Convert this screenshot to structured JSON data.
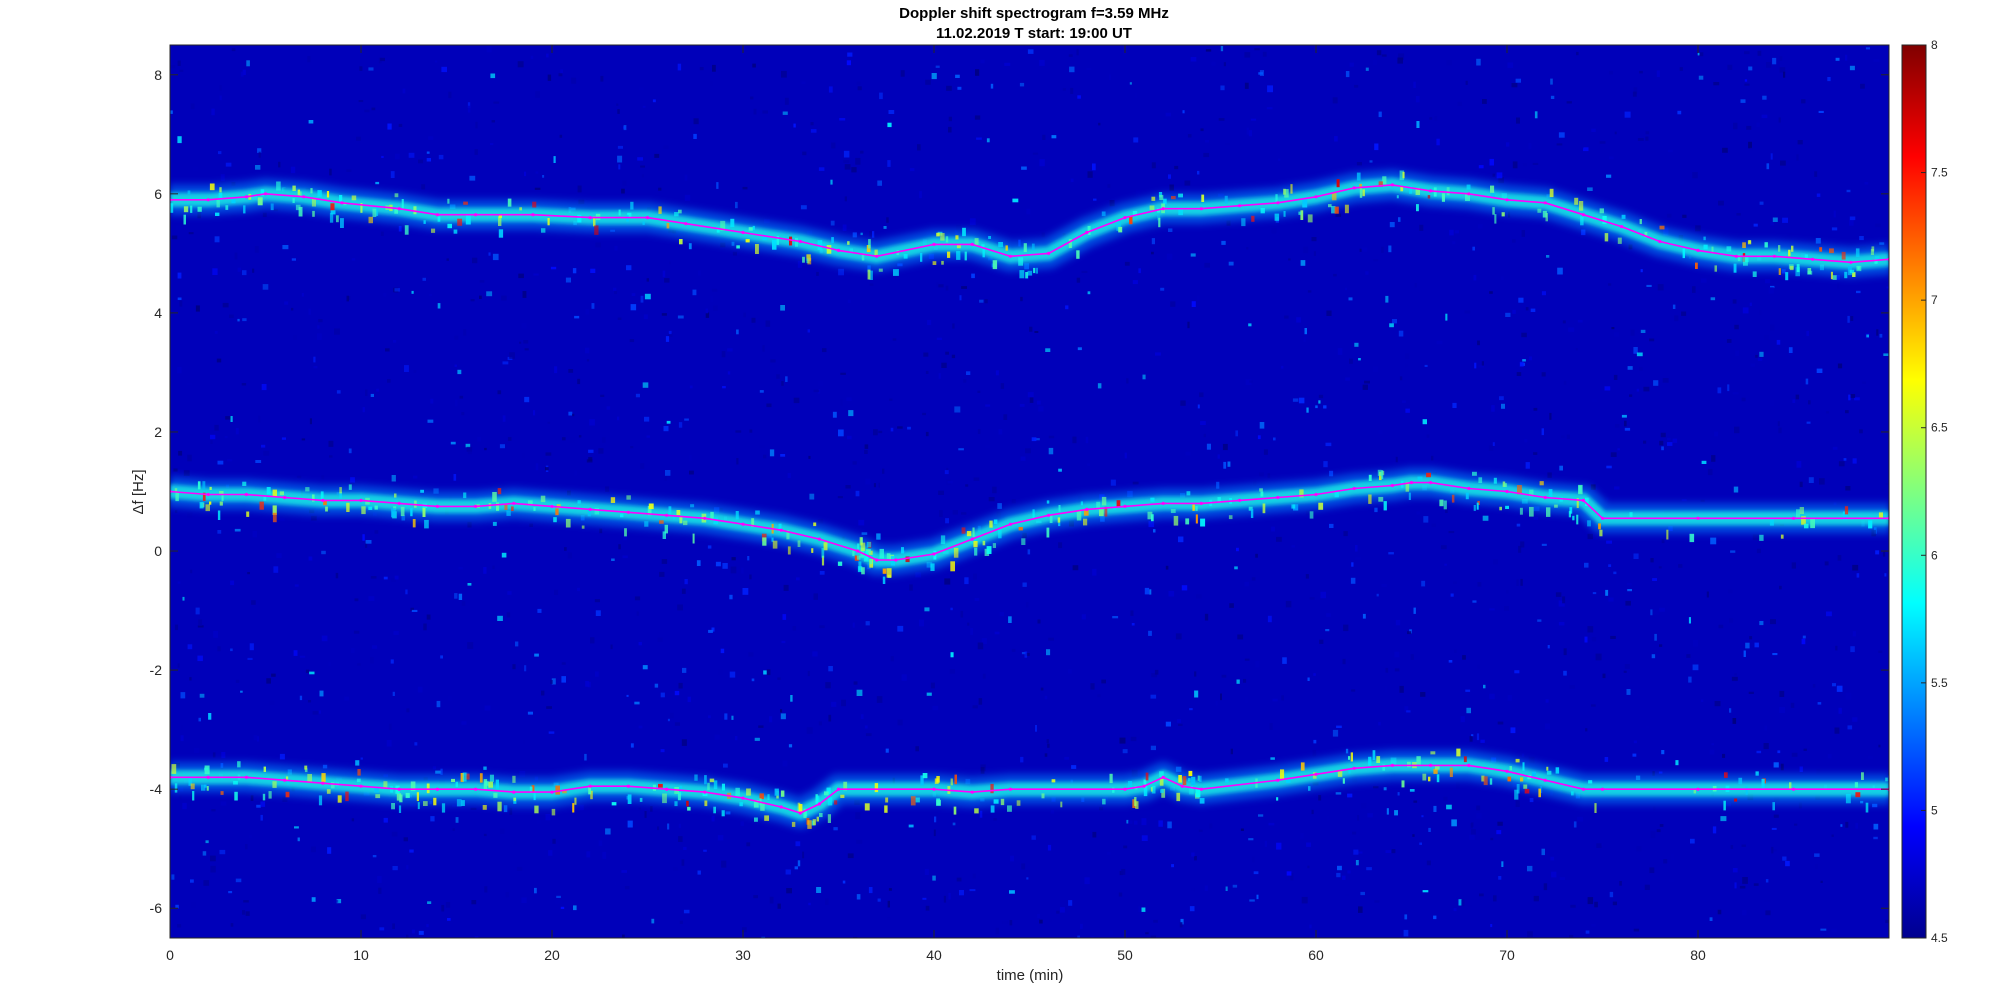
{
  "chart_data": {
    "type": "heatmap",
    "title": "Doppler shift spectrogram f=3.59 MHz",
    "subtitle": "11.02.2019   T start: 19:00 UT",
    "xlabel": "time (min)",
    "ylabel": "Δf [Hz]",
    "xlim": [
      0,
      90
    ],
    "ylim": [
      -6.5,
      8.5
    ],
    "x_ticks": [
      0,
      10,
      20,
      30,
      40,
      50,
      60,
      70,
      80
    ],
    "y_ticks": [
      -6,
      -4,
      -2,
      0,
      2,
      4,
      6,
      8
    ],
    "colormap": "jet",
    "colorbar": {
      "range": [
        4.5,
        8
      ],
      "ticks": [
        4.5,
        5,
        5.5,
        6,
        6.5,
        7,
        7.5,
        8
      ]
    },
    "background_value": 4.7,
    "grid": false,
    "series": [
      {
        "x": [
          0,
          2,
          4,
          5,
          7,
          9,
          12,
          14,
          16,
          19,
          22,
          25,
          27,
          30,
          33,
          35,
          37,
          40,
          42,
          44,
          46,
          48,
          50,
          52,
          54,
          56,
          58,
          60,
          62,
          64,
          66,
          68,
          70,
          72,
          74,
          76,
          78,
          80,
          82,
          84,
          86,
          88,
          90
        ],
        "values": [
          5.9,
          5.9,
          5.95,
          6.0,
          5.95,
          5.85,
          5.75,
          5.65,
          5.65,
          5.65,
          5.6,
          5.6,
          5.5,
          5.35,
          5.2,
          5.05,
          4.95,
          5.15,
          5.15,
          4.95,
          5.0,
          5.35,
          5.6,
          5.75,
          5.75,
          5.8,
          5.85,
          5.95,
          6.1,
          6.15,
          6.05,
          6.0,
          5.9,
          5.85,
          5.65,
          5.45,
          5.2,
          5.05,
          4.95,
          4.95,
          4.9,
          4.85,
          4.9
        ]
      },
      {
        "x": [
          0,
          2,
          4,
          6,
          8,
          10,
          12,
          14,
          16,
          18,
          20,
          22,
          24,
          26,
          28,
          30,
          32,
          34,
          36,
          37,
          38,
          40,
          42,
          44,
          46,
          48,
          50,
          52,
          54,
          56,
          58,
          60,
          62,
          64,
          65,
          66,
          68,
          70,
          72,
          74,
          75,
          80,
          85,
          90
        ],
        "values": [
          1.0,
          0.95,
          0.95,
          0.9,
          0.85,
          0.85,
          0.8,
          0.75,
          0.75,
          0.8,
          0.75,
          0.7,
          0.65,
          0.6,
          0.55,
          0.45,
          0.35,
          0.2,
          0.0,
          -0.15,
          -0.15,
          -0.05,
          0.2,
          0.45,
          0.6,
          0.7,
          0.75,
          0.8,
          0.8,
          0.85,
          0.9,
          0.95,
          1.05,
          1.1,
          1.15,
          1.15,
          1.05,
          1.0,
          0.9,
          0.85,
          0.55,
          0.55,
          0.55,
          0.55
        ]
      },
      {
        "x": [
          0,
          2,
          4,
          6,
          8,
          10,
          12,
          14,
          16,
          18,
          20,
          22,
          24,
          26,
          28,
          30,
          32,
          33,
          34,
          35,
          40,
          42,
          44,
          50,
          51,
          52,
          53,
          54,
          58,
          60,
          62,
          64,
          66,
          68,
          70,
          72,
          74,
          75,
          80,
          85,
          90
        ],
        "values": [
          -3.8,
          -3.8,
          -3.8,
          -3.85,
          -3.9,
          -3.95,
          -4.0,
          -4.0,
          -4.0,
          -4.05,
          -4.05,
          -3.95,
          -3.95,
          -4.0,
          -4.05,
          -4.15,
          -4.3,
          -4.4,
          -4.25,
          -4.0,
          -4.0,
          -4.05,
          -4.0,
          -4.0,
          -3.95,
          -3.8,
          -3.95,
          -4.0,
          -3.85,
          -3.75,
          -3.65,
          -3.6,
          -3.6,
          -3.6,
          -3.7,
          -3.85,
          -4.0,
          -4.0,
          -4.0,
          -4.0,
          -4.0
        ]
      }
    ]
  },
  "colors": {
    "trace": "#ff00ff",
    "axis": "#262626",
    "frame_background": "#ffffff"
  }
}
